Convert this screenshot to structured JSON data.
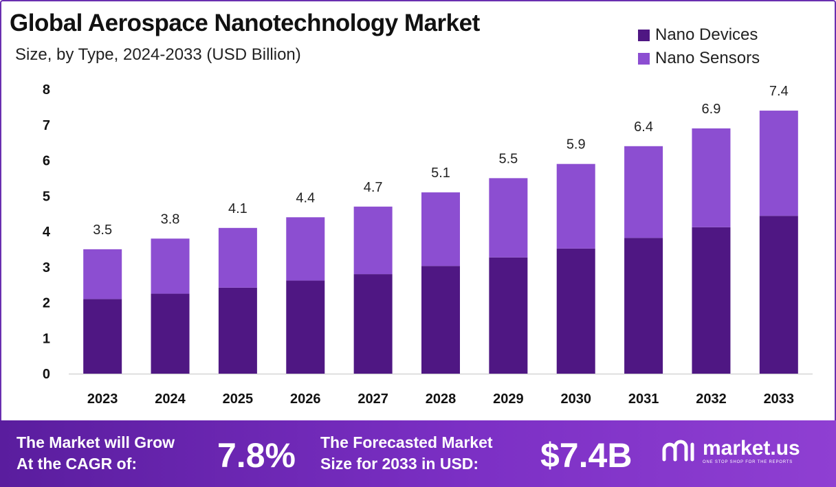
{
  "header": {
    "title": "Global Aerospace Nanotechnology Market",
    "subtitle": "Size, by Type, 2024-2033 (USD Billion)"
  },
  "legend": [
    {
      "label": "Nano Devices",
      "color": "#4f1783"
    },
    {
      "label": "Nano Sensors",
      "color": "#8c4ed1"
    }
  ],
  "chart_data": {
    "type": "bar",
    "stacked": true,
    "categories": [
      "2023",
      "2024",
      "2025",
      "2026",
      "2027",
      "2028",
      "2029",
      "2030",
      "2031",
      "2032",
      "2033"
    ],
    "series": [
      {
        "name": "Nano Devices",
        "color": "#4f1783",
        "values": [
          2.1,
          2.25,
          2.42,
          2.62,
          2.8,
          3.03,
          3.27,
          3.52,
          3.82,
          4.12,
          4.44
        ]
      },
      {
        "name": "Nano Sensors",
        "color": "#8c4ed1",
        "values": [
          1.4,
          1.55,
          1.68,
          1.78,
          1.9,
          2.07,
          2.23,
          2.38,
          2.58,
          2.78,
          2.96
        ]
      }
    ],
    "totals": [
      "3.5",
      "3.8",
      "4.1",
      "4.4",
      "4.7",
      "5.1",
      "5.5",
      "5.9",
      "6.4",
      "6.9",
      "7.4"
    ],
    "total_values": [
      3.5,
      3.8,
      4.1,
      4.4,
      4.7,
      5.1,
      5.5,
      5.9,
      6.4,
      6.9,
      7.4
    ],
    "yticks": [
      0,
      1,
      2,
      3,
      4,
      5,
      6,
      7,
      8
    ],
    "ylim": [
      0,
      8
    ],
    "grid": false,
    "legend_position": "top-right"
  },
  "footer": {
    "cagr_text_line1": "The Market will Grow",
    "cagr_text_line2": "At the CAGR of:",
    "cagr_value": "7.8%",
    "forecast_text_line1": "The Forecasted Market",
    "forecast_text_line2": "Size for 2033 in USD:",
    "forecast_value": "$7.4B",
    "logo_name": "market.us",
    "logo_tagline": "ONE STOP SHOP FOR THE REPORTS"
  }
}
